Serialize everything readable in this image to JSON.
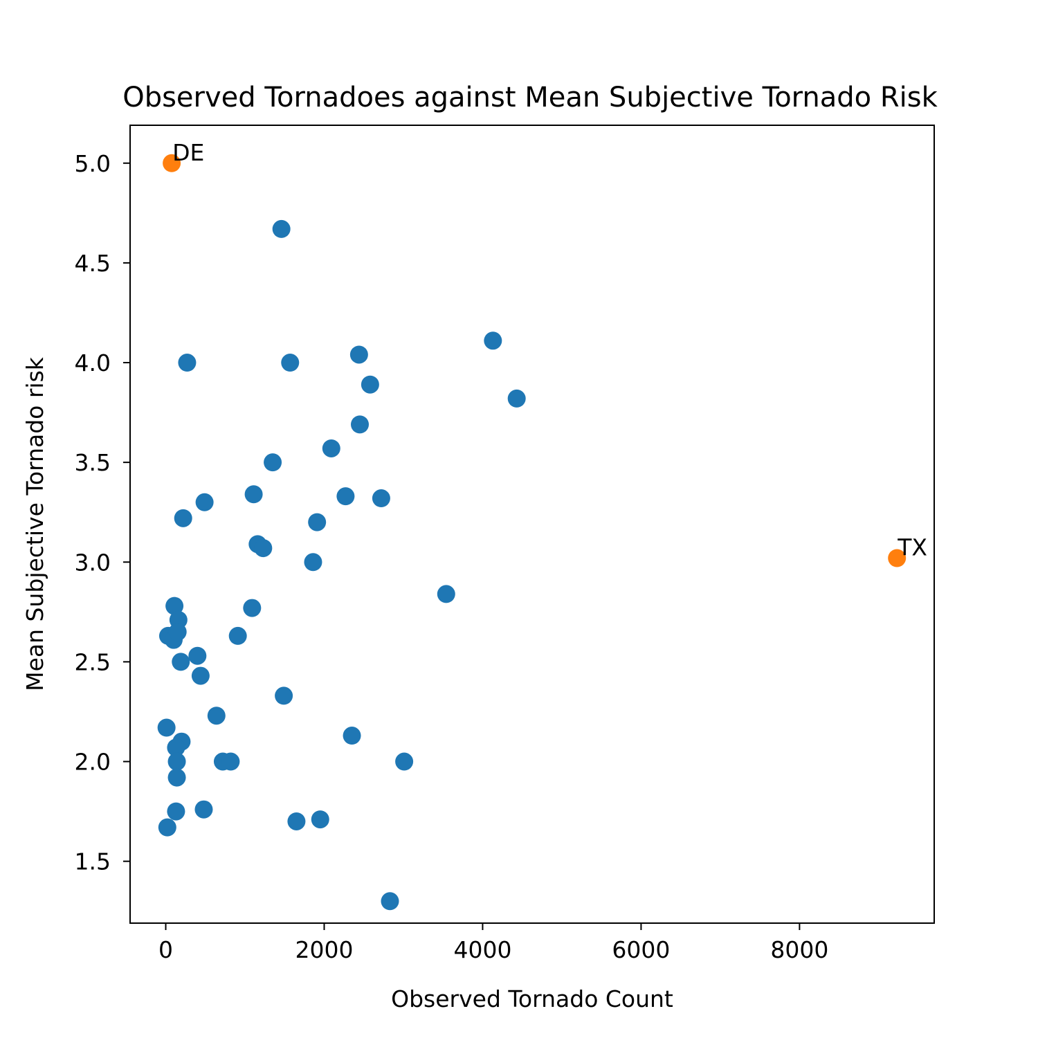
{
  "chart_data": {
    "type": "scatter",
    "title": "Observed Tornadoes against Mean Subjective Tornado Risk",
    "xlabel": "Observed Tornado Count",
    "ylabel": "Mean Subjective Tornado risk",
    "xlim": [
      -450,
      9700
    ],
    "ylim": [
      1.19,
      5.19
    ],
    "xticks": [
      0,
      2000,
      4000,
      6000,
      8000
    ],
    "yticks": [
      1.5,
      2.0,
      2.5,
      3.0,
      3.5,
      4.0,
      4.5,
      5.0
    ],
    "xtick_labels": [
      "0",
      "2000",
      "4000",
      "6000",
      "8000"
    ],
    "ytick_labels": [
      "1.5",
      "2.0",
      "2.5",
      "3.0",
      "3.5",
      "4.0",
      "4.5",
      "5.0"
    ],
    "grid": false,
    "colors": {
      "default": "#1f77b4",
      "highlight": "#ff7f0e"
    },
    "series": [
      {
        "points": [
          [
            1460,
            4.67
          ],
          [
            4130,
            4.11
          ],
          [
            270,
            4.0
          ],
          [
            1570,
            4.0
          ],
          [
            2440,
            4.04
          ],
          [
            2580,
            3.89
          ],
          [
            4430,
            3.82
          ],
          [
            2450,
            3.69
          ],
          [
            2090,
            3.57
          ],
          [
            1350,
            3.5
          ],
          [
            1110,
            3.34
          ],
          [
            2270,
            3.33
          ],
          [
            2720,
            3.32
          ],
          [
            490,
            3.3
          ],
          [
            220,
            3.22
          ],
          [
            1910,
            3.2
          ],
          [
            1160,
            3.09
          ],
          [
            1230,
            3.07
          ],
          [
            1860,
            3.0
          ],
          [
            3540,
            2.84
          ],
          [
            110,
            2.78
          ],
          [
            1090,
            2.77
          ],
          [
            160,
            2.71
          ],
          [
            30,
            2.63
          ],
          [
            100,
            2.61
          ],
          [
            150,
            2.65
          ],
          [
            910,
            2.63
          ],
          [
            400,
            2.53
          ],
          [
            190,
            2.5
          ],
          [
            440,
            2.43
          ],
          [
            1490,
            2.33
          ],
          [
            640,
            2.23
          ],
          [
            10,
            2.17
          ],
          [
            2350,
            2.13
          ],
          [
            200,
            2.1
          ],
          [
            130,
            2.07
          ],
          [
            140,
            2.0
          ],
          [
            720,
            2.0
          ],
          [
            820,
            2.0
          ],
          [
            3010,
            2.0
          ],
          [
            140,
            1.92
          ],
          [
            130,
            1.75
          ],
          [
            480,
            1.76
          ],
          [
            1650,
            1.7
          ],
          [
            1950,
            1.71
          ],
          [
            20,
            1.67
          ],
          [
            2830,
            1.3
          ]
        ]
      },
      {
        "highlight": true,
        "points": [
          [
            75,
            5.0
          ],
          [
            9230,
            3.02
          ]
        ]
      }
    ],
    "annotations": [
      {
        "text": "DE",
        "x": 75,
        "y": 5.0
      },
      {
        "text": "TX",
        "x": 9230,
        "y": 3.02
      }
    ]
  }
}
